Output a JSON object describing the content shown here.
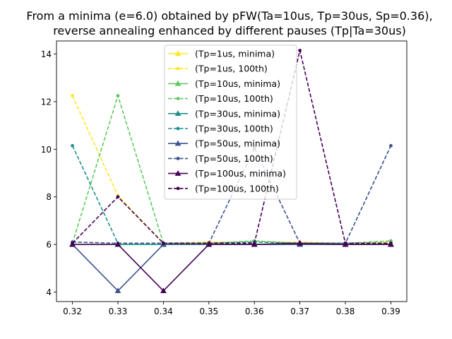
{
  "chart_data": {
    "type": "line",
    "title": "From a minima (e=6.0) obtained by pFW(Ta=10us, Tp=30us, Sp=0.36),",
    "subtitle": "reverse annealing enhanced by different pauses (Tp|Ta=30us)",
    "xlabel": "",
    "ylabel": "",
    "x": [
      0.32,
      0.33,
      0.34,
      0.35,
      0.36,
      0.37,
      0.38,
      0.39
    ],
    "x_tick_labels": [
      "0.32",
      "0.33",
      "0.34",
      "0.35",
      "0.36",
      "0.37",
      "0.38",
      "0.39"
    ],
    "y_ticks": [
      4,
      6,
      8,
      10,
      12,
      14
    ],
    "y_tick_labels": [
      "4",
      "6",
      "8",
      "10",
      "12",
      "14"
    ],
    "xlim": [
      0.3165,
      0.3935
    ],
    "ylim": [
      3.6,
      14.55
    ],
    "grid": false,
    "legend_position": "top-center",
    "series": [
      {
        "name": "(Tp=1us, minima)",
        "color": "#fde725",
        "style": "solid",
        "marker": "triangle",
        "values": [
          6.0,
          6.0,
          6.0,
          6.0,
          6.0,
          6.05,
          6.0,
          6.0
        ]
      },
      {
        "name": "(Tp=1us, 100th)",
        "color": "#fde725",
        "style": "dashed",
        "marker": "circle",
        "values": [
          12.25,
          8.05,
          6.05,
          6.1,
          6.1,
          6.1,
          6.05,
          6.1
        ]
      },
      {
        "name": "(Tp=10us, minima)",
        "color": "#5ec962",
        "style": "solid",
        "marker": "triangle",
        "values": [
          6.0,
          6.0,
          6.0,
          6.0,
          6.0,
          6.05,
          6.0,
          6.0
        ]
      },
      {
        "name": "(Tp=10us, 100th)",
        "color": "#5ec962",
        "style": "dashed",
        "marker": "circle",
        "values": [
          6.05,
          12.25,
          6.05,
          6.05,
          6.15,
          6.05,
          6.05,
          6.15
        ]
      },
      {
        "name": "(Tp=30us, minima)",
        "color": "#21918c",
        "style": "solid",
        "marker": "triangle",
        "values": [
          6.0,
          6.0,
          6.0,
          6.0,
          6.0,
          6.0,
          6.0,
          6.0
        ]
      },
      {
        "name": "(Tp=30us, 100th)",
        "color": "#21918c",
        "style": "dashed",
        "marker": "circle",
        "values": [
          10.15,
          6.05,
          6.05,
          6.05,
          6.1,
          6.05,
          6.05,
          6.05
        ]
      },
      {
        "name": "(Tp=50us, minima)",
        "color": "#3b528b",
        "style": "solid",
        "marker": "triangle",
        "values": [
          6.0,
          4.05,
          6.0,
          6.0,
          6.0,
          6.0,
          6.0,
          6.0
        ]
      },
      {
        "name": "(Tp=50us, 100th)",
        "color": "#3b528b",
        "style": "dashed",
        "marker": "circle",
        "values": [
          6.1,
          6.05,
          6.05,
          6.05,
          10.05,
          6.05,
          6.05,
          10.15
        ]
      },
      {
        "name": "(Tp=100us, minima)",
        "color": "#440154",
        "style": "solid",
        "marker": "triangle",
        "values": [
          6.0,
          6.0,
          4.05,
          6.0,
          6.0,
          6.05,
          6.0,
          6.0
        ]
      },
      {
        "name": "(Tp=100us, 100th)",
        "color": "#440154",
        "style": "dashed",
        "marker": "circle",
        "values": [
          6.05,
          8.0,
          6.05,
          6.05,
          6.05,
          14.15,
          6.05,
          6.05
        ]
      }
    ]
  }
}
